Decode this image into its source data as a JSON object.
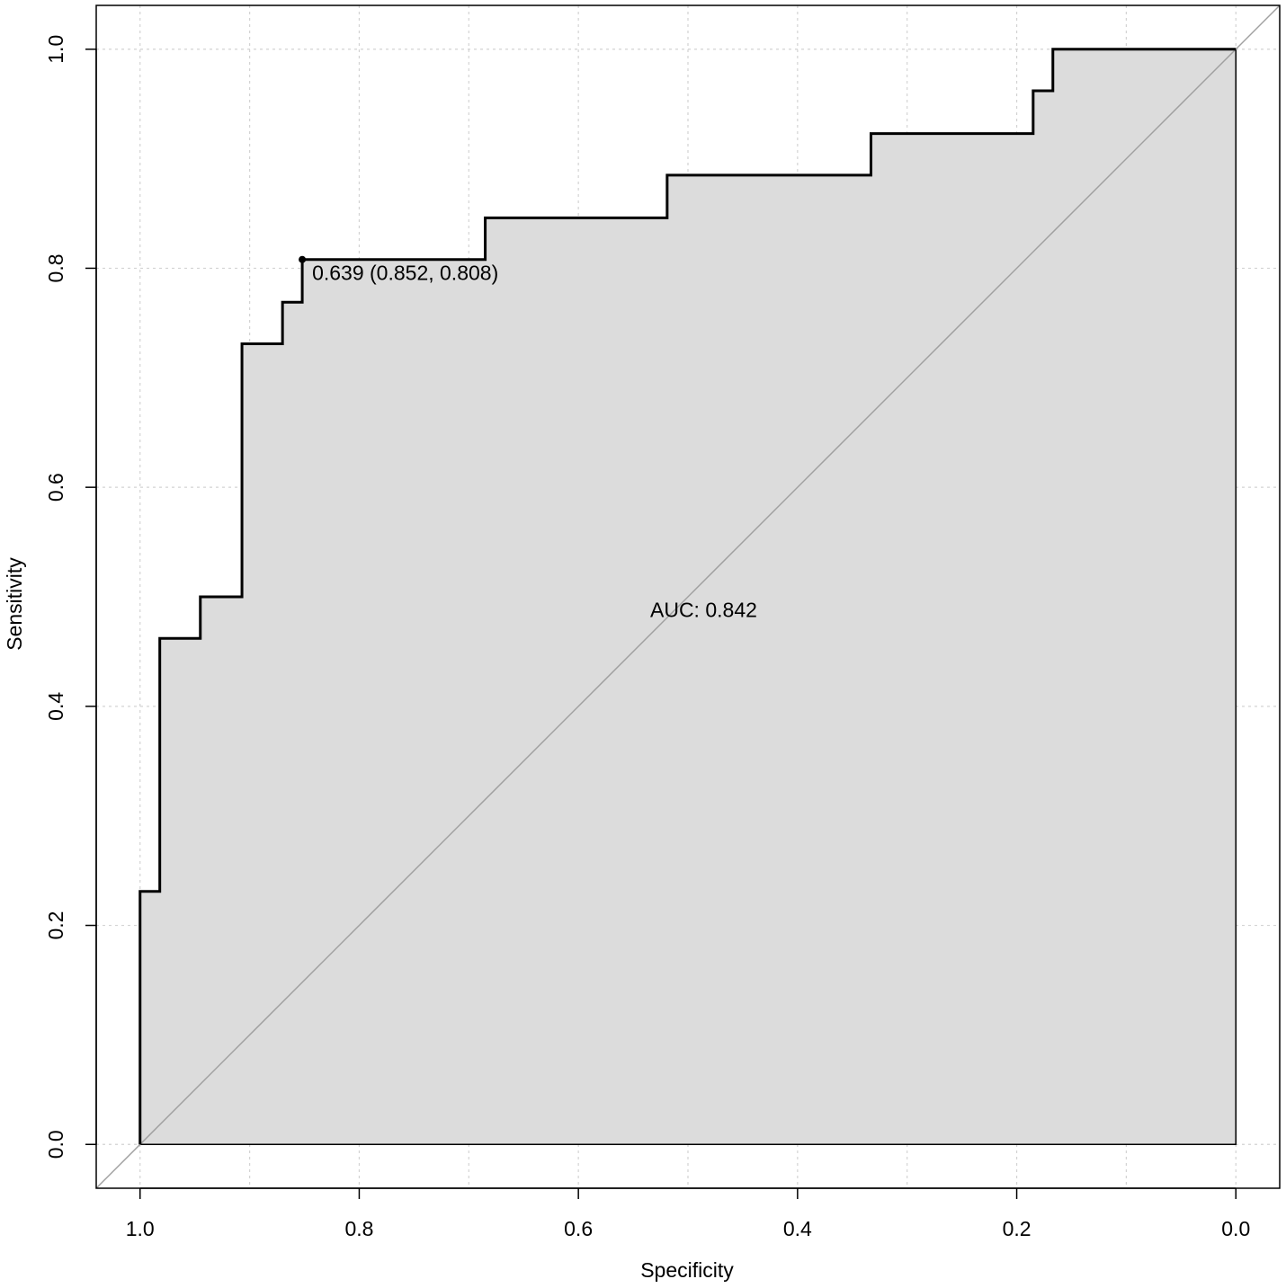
{
  "chart_data": {
    "type": "line",
    "subtype": "roc",
    "title": "",
    "xlabel": "Specificity",
    "ylabel": "Sensitivity",
    "x_reversed": true,
    "xlim": [
      1.04,
      -0.04
    ],
    "ylim": [
      -0.04,
      1.04
    ],
    "grid": true,
    "x_ticks": [
      1.0,
      0.8,
      0.6,
      0.4,
      0.2,
      0.0
    ],
    "x_tick_labels": [
      "1.0",
      "0.8",
      "0.6",
      "0.4",
      "0.2",
      "0.0"
    ],
    "y_ticks": [
      0.0,
      0.2,
      0.4,
      0.6,
      0.8,
      1.0
    ],
    "y_tick_labels": [
      "0.0",
      "0.2",
      "0.4",
      "0.6",
      "0.8",
      "1.0"
    ],
    "x_grid": [
      1.0,
      0.9,
      0.8,
      0.7,
      0.6,
      0.5,
      0.4,
      0.3,
      0.2,
      0.1,
      0.0
    ],
    "y_grid": [
      0.0,
      0.2,
      0.4,
      0.6,
      0.8,
      1.0
    ],
    "roc_curve": {
      "specificity": [
        1.0,
        1.0,
        0.982,
        0.982,
        0.945,
        0.945,
        0.907,
        0.907,
        0.87,
        0.87,
        0.852,
        0.852,
        0.685,
        0.685,
        0.519,
        0.519,
        0.333,
        0.333,
        0.185,
        0.185,
        0.167,
        0.167,
        0.0
      ],
      "sensitivity": [
        0.0,
        0.231,
        0.231,
        0.462,
        0.462,
        0.5,
        0.5,
        0.731,
        0.731,
        0.769,
        0.769,
        0.808,
        0.808,
        0.846,
        0.846,
        0.885,
        0.885,
        0.923,
        0.923,
        0.962,
        0.962,
        1.0,
        1.0
      ],
      "auc_fill": true,
      "fill_color": "#dcdcdc",
      "line_color": "#000000"
    },
    "reference_line": {
      "from": [
        1.04,
        -0.04
      ],
      "to": [
        -0.04,
        1.04
      ],
      "color": "#a0a0a0"
    },
    "threshold_point": {
      "specificity": 0.852,
      "sensitivity": 0.808,
      "label": "0.639 (0.852, 0.808)"
    },
    "auc_label": {
      "text": "AUC: 0.842",
      "specificity": 0.5,
      "sensitivity": 0.488
    }
  }
}
